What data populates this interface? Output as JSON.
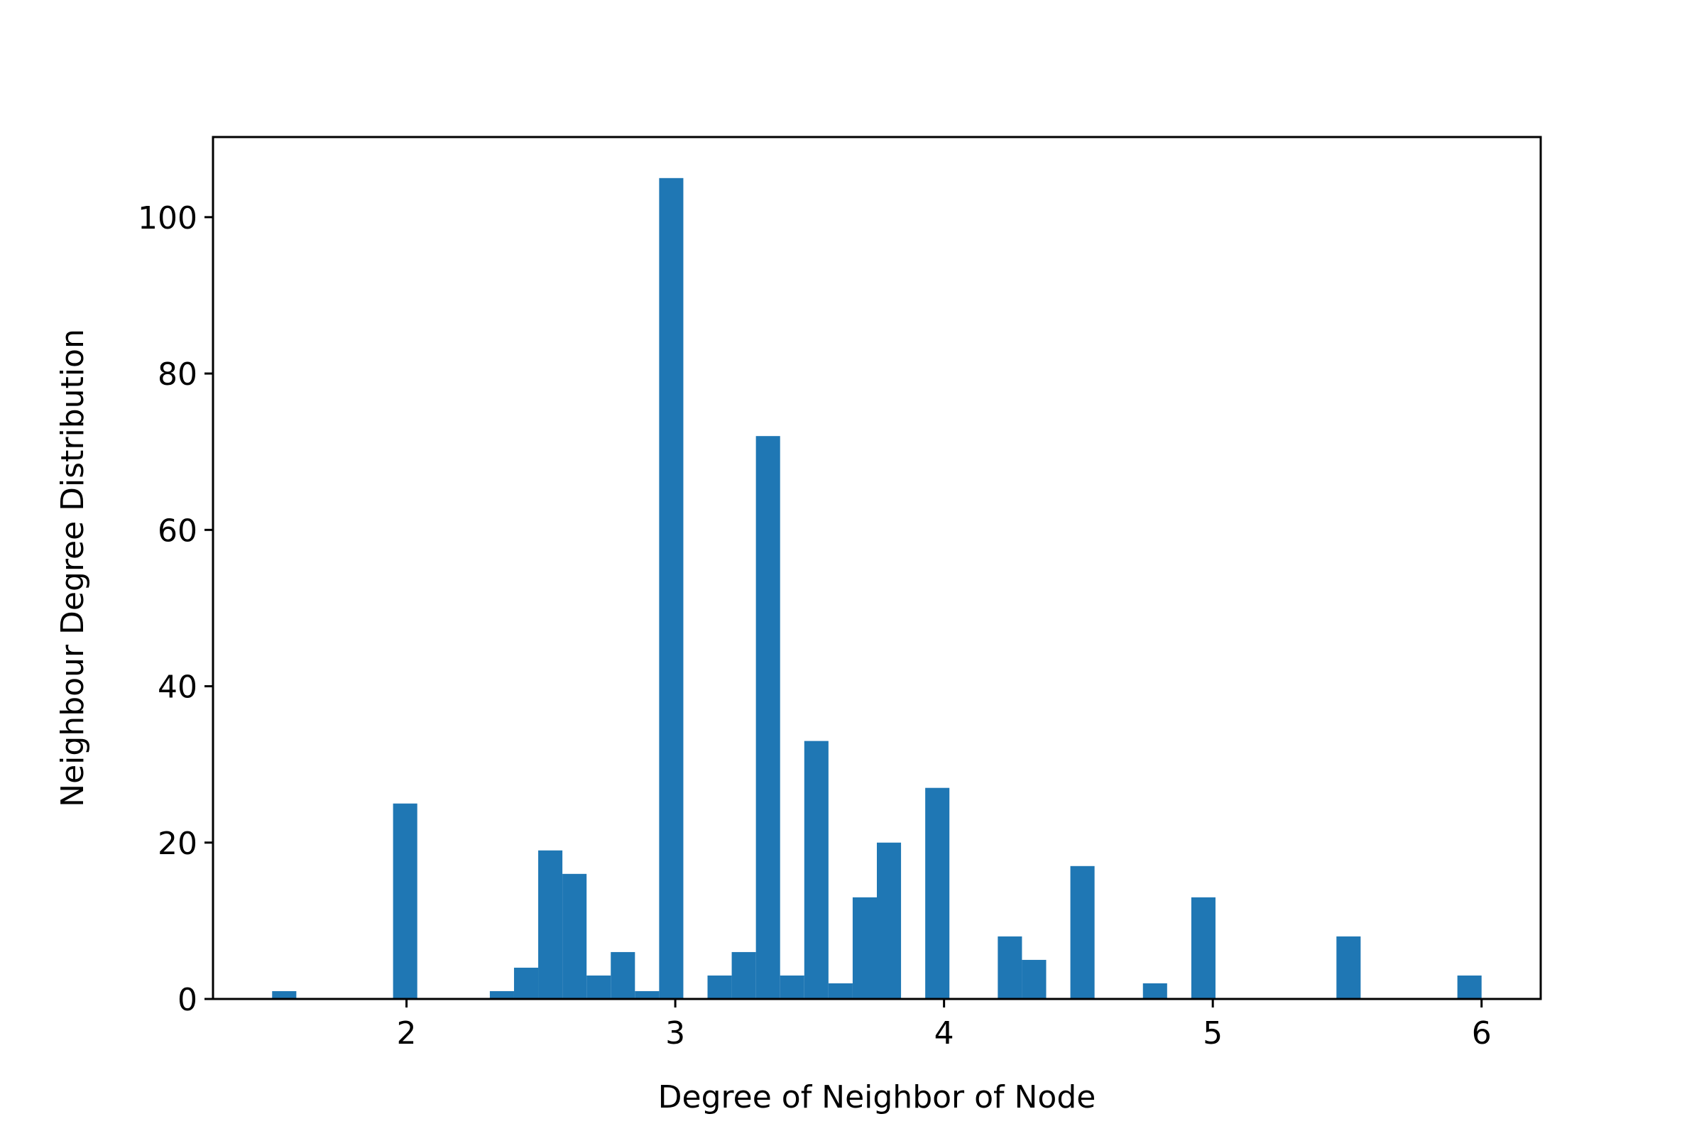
{
  "chart_data": {
    "type": "bar",
    "title": "",
    "xlabel": "Degree of Neighbor of Node",
    "ylabel": "Neighbour Degree Distribution",
    "xlim": [
      1.28,
      6.22
    ],
    "ylim": [
      0,
      110.25
    ],
    "xticks": [
      2,
      3,
      4,
      5,
      6
    ],
    "yticks": [
      0,
      20,
      40,
      60,
      80,
      100
    ],
    "xtick_labels": [
      "2",
      "3",
      "4",
      "5",
      "6"
    ],
    "ytick_labels": [
      "0",
      "20",
      "40",
      "60",
      "80",
      "100"
    ],
    "bin_width": 0.09,
    "color": "#1f77b4",
    "grid": false,
    "legend": "none",
    "bins": [
      {
        "x": 1.5,
        "value": 1
      },
      {
        "x": 1.95,
        "value": 25
      },
      {
        "x": 2.31,
        "value": 1
      },
      {
        "x": 2.4,
        "value": 4
      },
      {
        "x": 2.49,
        "value": 19
      },
      {
        "x": 2.58,
        "value": 16
      },
      {
        "x": 2.67,
        "value": 3
      },
      {
        "x": 2.76,
        "value": 6
      },
      {
        "x": 2.85,
        "value": 1
      },
      {
        "x": 2.94,
        "value": 105
      },
      {
        "x": 3.12,
        "value": 3
      },
      {
        "x": 3.21,
        "value": 6
      },
      {
        "x": 3.3,
        "value": 72
      },
      {
        "x": 3.39,
        "value": 3
      },
      {
        "x": 3.48,
        "value": 33
      },
      {
        "x": 3.57,
        "value": 2
      },
      {
        "x": 3.66,
        "value": 13
      },
      {
        "x": 3.75,
        "value": 20
      },
      {
        "x": 3.93,
        "value": 27
      },
      {
        "x": 4.2,
        "value": 8
      },
      {
        "x": 4.29,
        "value": 5
      },
      {
        "x": 4.47,
        "value": 17
      },
      {
        "x": 4.74,
        "value": 2
      },
      {
        "x": 4.92,
        "value": 13
      },
      {
        "x": 5.46,
        "value": 8
      },
      {
        "x": 5.91,
        "value": 3
      }
    ]
  }
}
